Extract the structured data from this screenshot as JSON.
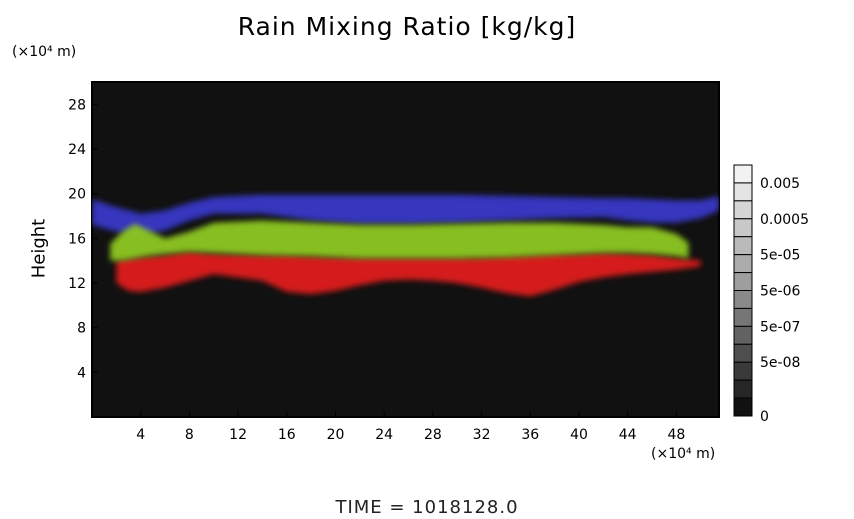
{
  "chart_data": {
    "type": "heatmap",
    "title": "Rain Mixing Ratio [kg/kg]",
    "ylabel": "Height",
    "xlabel": "",
    "y_unit": "(×10⁴ m)",
    "x_unit": "(×10⁴ m)",
    "xlim": [
      0,
      51.5
    ],
    "ylim": [
      0,
      30
    ],
    "x_ticks": [
      4,
      8,
      12,
      16,
      20,
      24,
      28,
      32,
      36,
      40,
      44,
      48
    ],
    "y_ticks": [
      4,
      8,
      12,
      16,
      20,
      24,
      28
    ],
    "background_color": "#111111",
    "layers": [
      {
        "color": "#3838c8",
        "x": [
          0,
          2,
          4,
          6,
          8,
          10,
          14,
          18,
          22,
          26,
          30,
          34,
          38,
          42,
          44,
          46,
          48,
          50,
          51.5
        ],
        "top": [
          19.5,
          18.8,
          18.2,
          18.5,
          19.2,
          19.7,
          19.9,
          19.9,
          19.9,
          19.9,
          19.9,
          19.8,
          19.7,
          19.6,
          19.6,
          19.5,
          19.4,
          19.4,
          19.8
        ],
        "bottom": [
          17.2,
          16.6,
          16.2,
          16.7,
          17.6,
          18.2,
          18.2,
          17.6,
          17.3,
          17.3,
          17.4,
          17.6,
          17.8,
          17.9,
          17.6,
          17.4,
          17.4,
          17.8,
          18.5
        ]
      },
      {
        "color": "#8ec822",
        "x": [
          1.5,
          2.5,
          3.5,
          4.5,
          6,
          8,
          10,
          14,
          18,
          22,
          26,
          30,
          34,
          38,
          42,
          44,
          46,
          48,
          49
        ],
        "top": [
          15.5,
          16.6,
          17.3,
          16.8,
          16,
          16.6,
          17.4,
          17.6,
          17.4,
          17.2,
          17.2,
          17.3,
          17.4,
          17.4,
          17.2,
          17.0,
          17.0,
          16.4,
          15.6
        ],
        "bottom": [
          14.0,
          14.0,
          14.2,
          14.4,
          14.6,
          14.8,
          14.7,
          14.5,
          14.4,
          14.2,
          14.2,
          14.2,
          14.3,
          14.5,
          14.7,
          14.7,
          14.6,
          14.4,
          14.2
        ]
      },
      {
        "color": "#e01f1f",
        "x": [
          2,
          3,
          4,
          6,
          8,
          10,
          14,
          16,
          18,
          20,
          22,
          24,
          26,
          28,
          30,
          32,
          34,
          36,
          38,
          40,
          42,
          44,
          46,
          48,
          50
        ],
        "top": [
          14.0,
          14.2,
          14.3,
          14.5,
          14.8,
          14.6,
          14.5,
          14.5,
          14.4,
          14.3,
          14.3,
          14.3,
          14.3,
          14.3,
          14.3,
          14.3,
          14.4,
          14.5,
          14.6,
          14.6,
          14.7,
          14.6,
          14.5,
          14.2,
          14.0
        ]
      },
      {
        "color": "#e01f1f",
        "x": [
          2,
          3,
          4,
          6,
          8,
          10,
          14,
          16,
          18,
          20,
          22,
          24,
          26,
          28,
          30,
          32,
          34,
          36,
          38,
          40,
          42,
          44,
          46,
          48,
          50
        ],
        "bottom": [
          12.0,
          11.3,
          11.2,
          11.6,
          12.2,
          12.8,
          12.2,
          11.2,
          11.0,
          11.3,
          11.8,
          12.2,
          12.3,
          12.2,
          12.0,
          11.6,
          11.1,
          10.8,
          11.4,
          12.1,
          12.5,
          12.8,
          13.0,
          13.2,
          13.5
        ]
      }
    ],
    "colorbar": {
      "labels": [
        "0.005",
        "0.0005",
        "5e-05",
        "5e-06",
        "5e-07",
        "5e-08",
        "0"
      ],
      "levels": 14,
      "colors": [
        "#f2f2f2",
        "#e4e4e4",
        "#d6d6d6",
        "#c8c8c8",
        "#bababa",
        "#acacac",
        "#9e9e9e",
        "#8a8a8a",
        "#767676",
        "#626262",
        "#4e4e4e",
        "#3a3a3a",
        "#262626",
        "#111111"
      ]
    },
    "footer": "TIME =  1018128.0"
  }
}
